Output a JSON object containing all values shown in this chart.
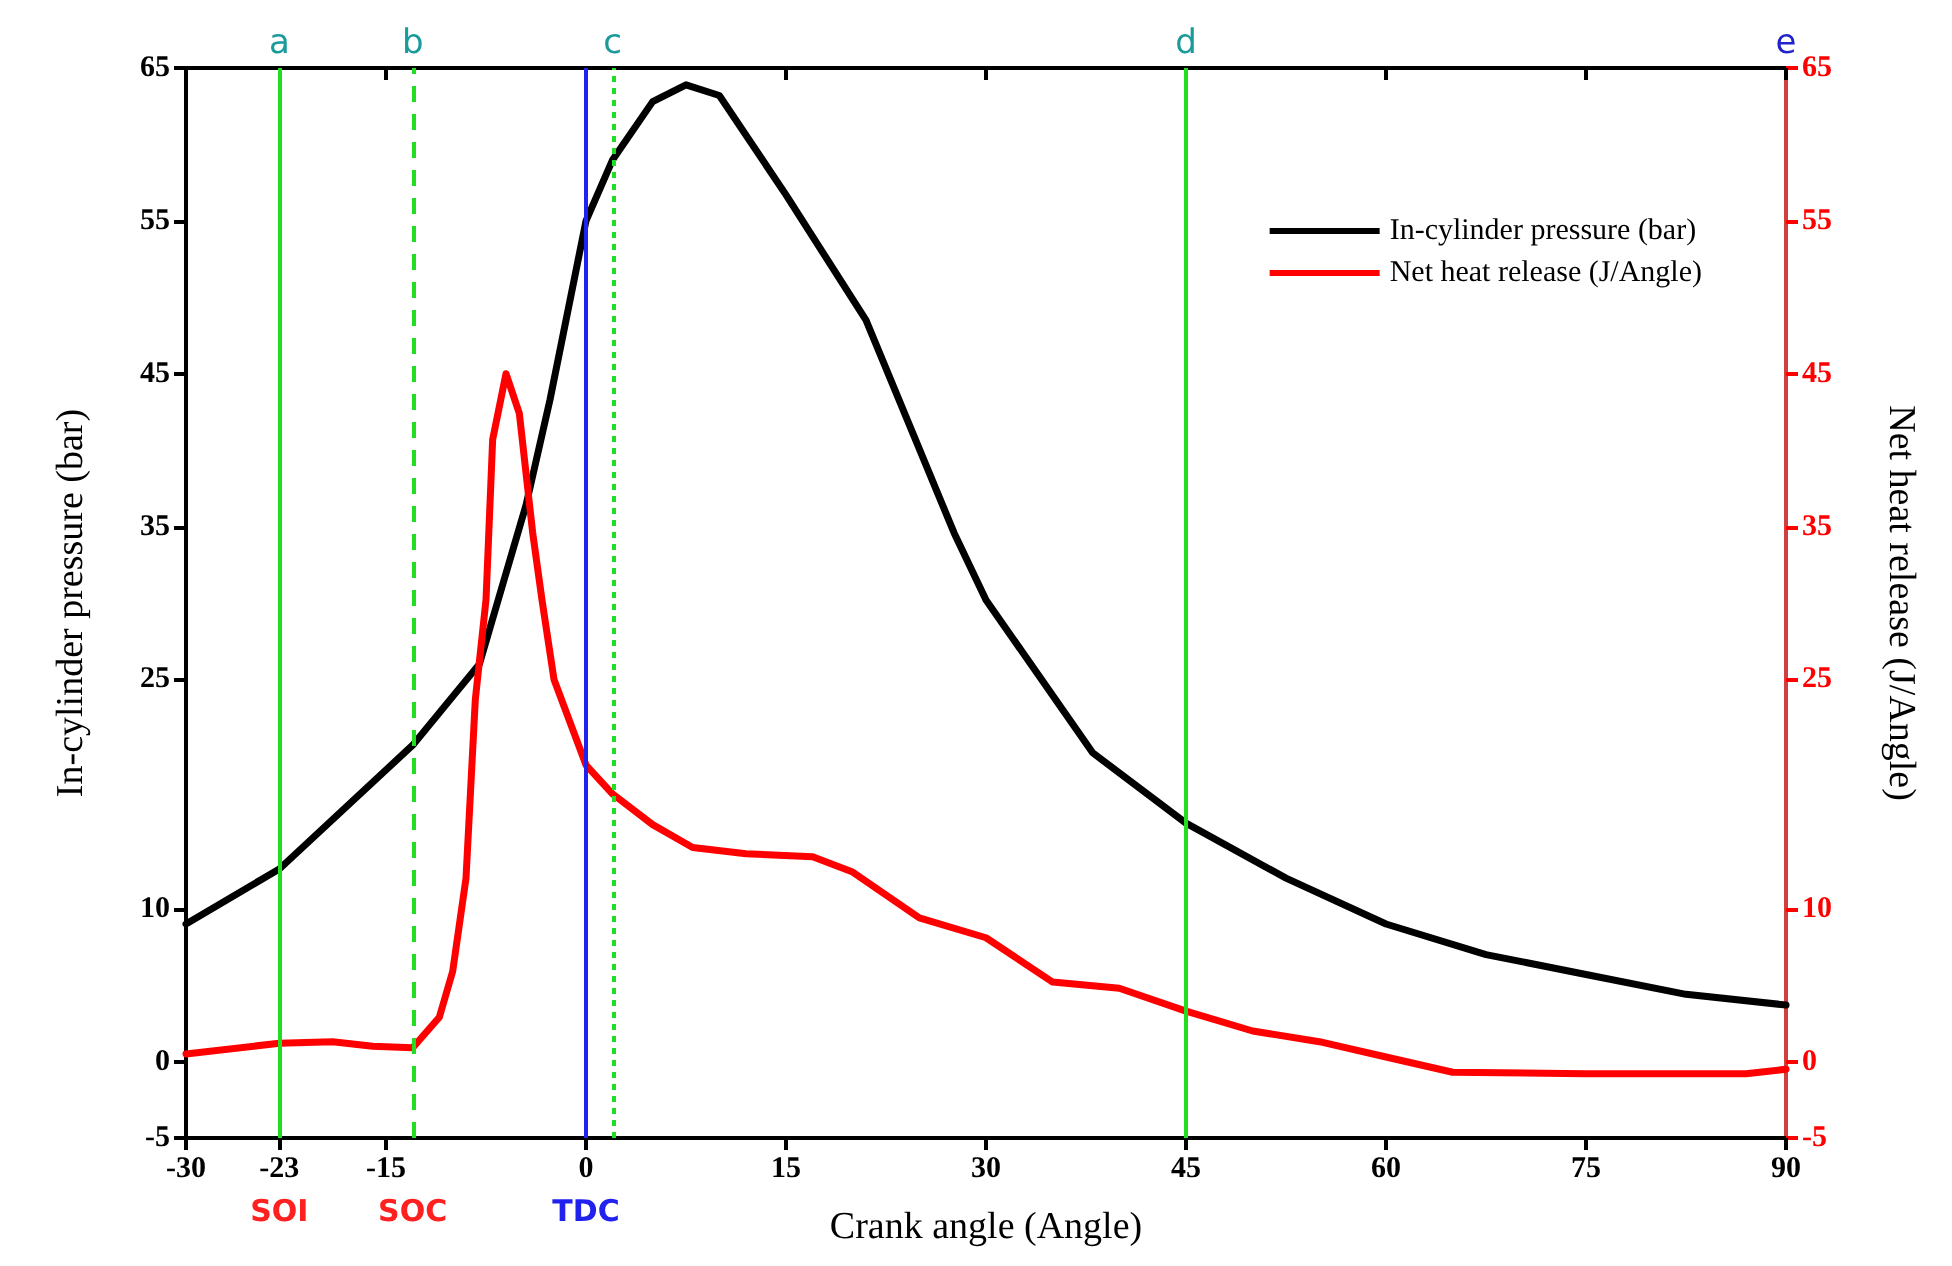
{
  "chart_data": {
    "type": "line",
    "xlabel": "Crank angle (Angle)",
    "ylabel": "In-cylinder pressure (bar)",
    "y2label": "Net heat release (J/Angle)",
    "xlim": [
      -30,
      90
    ],
    "xticks": [
      -30,
      -23,
      -15,
      0,
      15,
      30,
      45,
      60,
      75,
      90
    ],
    "ylim": [
      -5,
      65
    ],
    "yticks": [
      -5,
      0,
      10,
      25,
      35,
      45,
      55,
      65
    ],
    "y2lim": [
      -5,
      65
    ],
    "y2ticks": [
      -5,
      0,
      10,
      25,
      35,
      45,
      55,
      65
    ],
    "grid": false,
    "legend": "top right",
    "marker": "none",
    "line_style": "solid",
    "series": [
      {
        "name": "In-cylinder pressure (bar)",
        "color": "#000000",
        "x": [
          -30,
          -23,
          -13,
          -8,
          -4.5,
          -2.7,
          0,
          2,
          5,
          7.5,
          10,
          15,
          21,
          27.6,
          30,
          38,
          45,
          52.5,
          60,
          67.5,
          75,
          82.5,
          90
        ],
        "values": [
          9.0,
          12.6,
          20.7,
          26,
          36.4,
          43.3,
          55,
          59,
          62.8,
          63.9,
          63.2,
          56.7,
          48.5,
          34.6,
          30.2,
          20.2,
          15.6,
          12.0,
          9.0,
          7.0,
          5.7,
          4.4,
          3.7
        ]
      },
      {
        "name": "Net heat release (J/Angle)",
        "color": "#ff0000",
        "axis": "y2",
        "x": [
          -30,
          -23,
          -19,
          -16,
          -13,
          -11,
          -10,
          -9,
          -8.3,
          -7.5,
          -7,
          -6,
          -5,
          -4,
          -3.3,
          -2.4,
          0,
          2,
          5,
          8,
          12,
          17,
          20,
          25,
          30,
          35,
          40,
          45,
          50,
          55,
          60,
          65,
          75,
          87,
          90
        ],
        "values": [
          0.5,
          1.2,
          1.3,
          1.0,
          0.9,
          2.9,
          5.9,
          12,
          23.7,
          30.2,
          40.7,
          45,
          42.4,
          34.6,
          30.2,
          25,
          19.4,
          17.5,
          15.5,
          14,
          13.6,
          13.4,
          12.4,
          9.4,
          8.1,
          5.2,
          4.8,
          3.3,
          2.0,
          1.3,
          0.3,
          -0.7,
          -0.8,
          -0.8,
          -0.5
        ]
      }
    ],
    "ref_lines": [
      {
        "axis": "x",
        "value": -23,
        "label": "a",
        "color": "#22dd22",
        "line_style": "solid"
      },
      {
        "axis": "x",
        "value": -13,
        "label": "b",
        "color": "#22dd22",
        "line_style": "dashed"
      },
      {
        "axis": "x",
        "value": 0,
        "color": "#2222ee",
        "line_style": "solid"
      },
      {
        "axis": "x",
        "value": 2,
        "label": "c",
        "color": "#22dd22",
        "line_style": "dotted"
      },
      {
        "axis": "x",
        "value": 45,
        "label": "d",
        "color": "#22dd22",
        "line_style": "solid"
      }
    ],
    "annotations": [
      "SOI",
      "SOC",
      "TDC",
      "e"
    ]
  }
}
